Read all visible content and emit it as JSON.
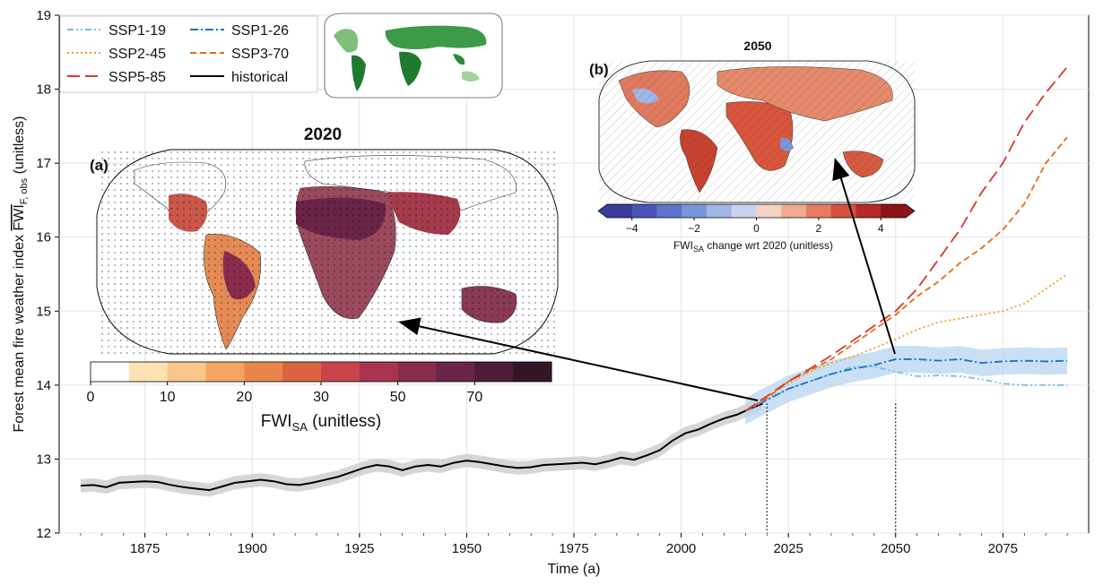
{
  "chart_data": {
    "type": "line",
    "xlabel": "Time (a)",
    "ylabel_main": "Forest mean fire weather index ",
    "ylabel_sym": "FWI",
    "ylabel_sub": "F, obs",
    "ylabel_unit": " (unitless)",
    "xlim": [
      1855,
      2095
    ],
    "ylim": [
      12,
      19
    ],
    "xticks": [
      1875,
      1900,
      1925,
      1950,
      1975,
      2000,
      2025,
      2050,
      2075
    ],
    "yticks": [
      12,
      13,
      14,
      15,
      16,
      17,
      18,
      19
    ],
    "grid": true,
    "legend_position": "top-left",
    "series": [
      {
        "name": "historical",
        "color": "#000000",
        "dash": "solid",
        "band_color": "#cccccc",
        "x": [
          1860,
          1863,
          1866,
          1869,
          1872,
          1875,
          1878,
          1881,
          1884,
          1887,
          1890,
          1893,
          1896,
          1899,
          1902,
          1905,
          1908,
          1911,
          1914,
          1917,
          1920,
          1923,
          1926,
          1929,
          1932,
          1935,
          1938,
          1941,
          1944,
          1947,
          1950,
          1953,
          1956,
          1959,
          1962,
          1965,
          1968,
          1971,
          1974,
          1977,
          1980,
          1983,
          1986,
          1989,
          1992,
          1995,
          1998,
          2001,
          2004,
          2007,
          2010,
          2013,
          2016,
          2019
        ],
        "y": [
          12.64,
          12.65,
          12.62,
          12.68,
          12.69,
          12.7,
          12.69,
          12.65,
          12.62,
          12.6,
          12.58,
          12.63,
          12.68,
          12.7,
          12.72,
          12.7,
          12.66,
          12.65,
          12.68,
          12.72,
          12.76,
          12.82,
          12.88,
          12.92,
          12.9,
          12.85,
          12.9,
          12.92,
          12.9,
          12.95,
          12.98,
          12.96,
          12.93,
          12.9,
          12.88,
          12.89,
          12.92,
          12.93,
          12.94,
          12.95,
          12.93,
          12.97,
          13.02,
          12.99,
          13.05,
          13.12,
          13.25,
          13.35,
          13.4,
          13.48,
          13.55,
          13.6,
          13.68,
          13.75
        ],
        "band": 0.09
      },
      {
        "name": "SSP1-19",
        "color": "#6ec0ee",
        "dash": "dashdotdot",
        "x": [
          2015,
          2020,
          2025,
          2030,
          2035,
          2040,
          2045,
          2050,
          2055,
          2060,
          2065,
          2070,
          2075,
          2080,
          2085,
          2090
        ],
        "y": [
          13.65,
          13.8,
          13.95,
          14.05,
          14.15,
          14.25,
          14.25,
          14.18,
          14.12,
          14.13,
          14.12,
          14.08,
          14.02,
          14.0,
          14.0,
          14.0
        ]
      },
      {
        "name": "SSP1-26",
        "color": "#1f6fc4",
        "dash": "dashdot",
        "band_color": "#bcd7f0",
        "x": [
          2015,
          2020,
          2025,
          2030,
          2035,
          2040,
          2045,
          2050,
          2055,
          2060,
          2065,
          2070,
          2075,
          2080,
          2085,
          2090
        ],
        "y": [
          13.65,
          13.8,
          13.95,
          14.05,
          14.15,
          14.22,
          14.27,
          14.35,
          14.35,
          14.33,
          14.35,
          14.3,
          14.32,
          14.33,
          14.32,
          14.33
        ],
        "band": 0.18
      },
      {
        "name": "SSP2-45",
        "color": "#f29a2e",
        "dash": "dotted",
        "x": [
          2015,
          2020,
          2025,
          2030,
          2035,
          2040,
          2045,
          2050,
          2055,
          2060,
          2065,
          2070,
          2075,
          2080,
          2085,
          2090
        ],
        "y": [
          13.65,
          13.85,
          14.02,
          14.18,
          14.3,
          14.38,
          14.5,
          14.62,
          14.75,
          14.85,
          14.9,
          14.95,
          15.0,
          15.1,
          15.3,
          15.5
        ]
      },
      {
        "name": "SSP3-70",
        "color": "#ea6a10",
        "dash": "dashed",
        "x": [
          2015,
          2020,
          2025,
          2030,
          2035,
          2040,
          2045,
          2050,
          2055,
          2060,
          2065,
          2070,
          2075,
          2080,
          2085,
          2090
        ],
        "y": [
          13.65,
          13.82,
          14.05,
          14.2,
          14.35,
          14.55,
          14.75,
          14.95,
          15.2,
          15.4,
          15.65,
          15.85,
          16.1,
          16.45,
          17.0,
          17.35
        ]
      },
      {
        "name": "SSP5-85",
        "color": "#d33a2c",
        "dash": "longdash",
        "x": [
          2015,
          2020,
          2025,
          2030,
          2035,
          2040,
          2045,
          2050,
          2055,
          2060,
          2065,
          2070,
          2075,
          2080,
          2085,
          2090
        ],
        "y": [
          13.65,
          13.85,
          14.05,
          14.22,
          14.4,
          14.6,
          14.8,
          15.0,
          15.3,
          15.7,
          16.1,
          16.6,
          17.0,
          17.55,
          17.95,
          18.3
        ]
      }
    ],
    "markers": [
      {
        "x": 2020,
        "label_panel": "a"
      },
      {
        "x": 2050,
        "label_panel": "b"
      }
    ]
  },
  "legend": {
    "items": [
      {
        "name": "SSP1-19",
        "color": "#6ec0ee",
        "dash": "dashdotdot"
      },
      {
        "name": "SSP1-26",
        "color": "#1f6fc4",
        "dash": "dashdot"
      },
      {
        "name": "SSP2-45",
        "color": "#f29a2e",
        "dash": "dotted"
      },
      {
        "name": "SSP3-70",
        "color": "#ea6a10",
        "dash": "dashed"
      },
      {
        "name": "SSP5-85",
        "color": "#d33a2c",
        "dash": "longdash"
      },
      {
        "name": "historical",
        "color": "#000000",
        "dash": "solid"
      }
    ]
  },
  "panel_a": {
    "tag": "(a)",
    "title": "2020",
    "colorbar": {
      "ticks": [
        "0",
        "10",
        "20",
        "30",
        "50",
        "70"
      ],
      "label_main": "FWI",
      "label_sub": "SA",
      "label_rest": " (unitless)",
      "colors": [
        "#ffffff",
        "#fde2b4",
        "#f9c58a",
        "#f4a562",
        "#ea8549",
        "#dc6340",
        "#c84448",
        "#aa3450",
        "#8a2c4e",
        "#6a2447",
        "#4d1c3a",
        "#341528"
      ]
    }
  },
  "panel_b": {
    "tag": "(b)",
    "title": "2050",
    "colorbar": {
      "ticks": [
        "−4",
        "−2",
        "0",
        "2",
        "4"
      ],
      "label_main": "FWI",
      "label_sub": "SA",
      "label_rest": "  change wrt 2020 (unitless)",
      "colors": [
        "#3b3b9a",
        "#4a55b8",
        "#5e74cc",
        "#7896da",
        "#a0b6e6",
        "#c8d4ee",
        "#f4d2c4",
        "#f1a98f",
        "#e77c62",
        "#d64f3e",
        "#b82a26",
        "#8b1517"
      ]
    }
  },
  "inset_map": {
    "color": "#2e8b3a"
  }
}
